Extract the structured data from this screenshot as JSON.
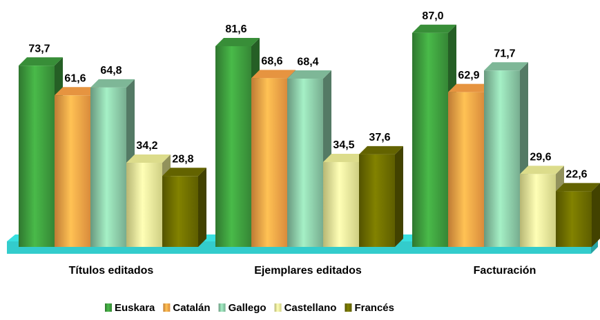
{
  "chart_data": {
    "type": "bar3d",
    "categories": [
      "Títulos editados",
      "Ejemplares editados",
      "Facturación"
    ],
    "series": [
      {
        "name": "Euskara",
        "color": "#3e9e3e",
        "values": [
          73.7,
          81.6,
          87.0
        ],
        "value_labels": [
          "73,7",
          "81,6",
          "87,0"
        ]
      },
      {
        "name": "Catalán",
        "color": "#ffa447",
        "values": [
          61.6,
          68.6,
          62.9
        ],
        "value_labels": [
          "61,6",
          "68,6",
          "62,9"
        ]
      },
      {
        "name": "Gallego",
        "color": "#8ccba8",
        "values": [
          64.8,
          68.4,
          71.7
        ],
        "value_labels": [
          "64,8",
          "68,4",
          "71,7"
        ]
      },
      {
        "name": "Castellano",
        "color": "#f4f49a",
        "values": [
          34.2,
          34.5,
          29.6
        ],
        "value_labels": [
          "34,2",
          "34,5",
          "29,6"
        ]
      },
      {
        "name": "Francés",
        "color": "#6e6e00",
        "values": [
          28.8,
          37.6,
          22.6
        ],
        "value_labels": [
          "28,8",
          "37,6",
          "22,6"
        ]
      }
    ],
    "ylim": [
      0,
      90
    ],
    "floor_color": "#33cccc"
  }
}
